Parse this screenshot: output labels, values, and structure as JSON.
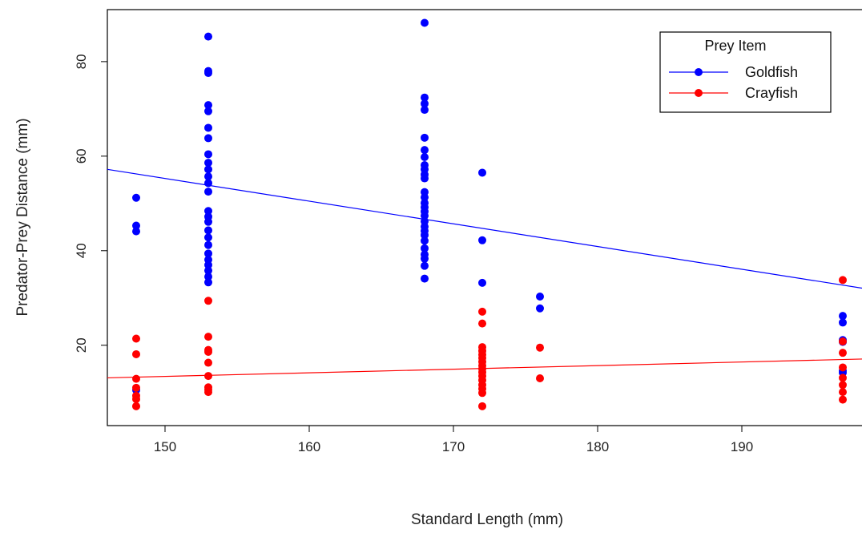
{
  "chart_data": {
    "type": "scatter",
    "title": "",
    "xlabel": "Standard Length (mm)",
    "ylabel": "Predator-Prey Distance (mm)",
    "xlim": [
      146,
      198.5
    ],
    "ylim": [
      3,
      91
    ],
    "xticks": [
      150,
      160,
      170,
      180,
      190
    ],
    "yticks": [
      20,
      40,
      60,
      80
    ],
    "grid": false,
    "legend": {
      "title": "Prey Item",
      "position": "top-right",
      "entries": [
        "Goldfish",
        "Crayfish"
      ]
    },
    "series": [
      {
        "name": "Goldfish",
        "color": "#0000ff",
        "points": [
          [
            148,
            51.2
          ],
          [
            148,
            45.3
          ],
          [
            148,
            44.1
          ],
          [
            148,
            10.5
          ],
          [
            153,
            85.3
          ],
          [
            153,
            78
          ],
          [
            153,
            77.6
          ],
          [
            153,
            70.8
          ],
          [
            153,
            69.5
          ],
          [
            153,
            66
          ],
          [
            153,
            63.8
          ],
          [
            153,
            60.4
          ],
          [
            153,
            58.6
          ],
          [
            153,
            57.2
          ],
          [
            153,
            55.7
          ],
          [
            153,
            54.3
          ],
          [
            153,
            52.5
          ],
          [
            153,
            48.4
          ],
          [
            153,
            47.2
          ],
          [
            153,
            46.1
          ],
          [
            153,
            44.3
          ],
          [
            153,
            42.8
          ],
          [
            153,
            41.2
          ],
          [
            153,
            39.4
          ],
          [
            153,
            38.1
          ],
          [
            153,
            37
          ],
          [
            153,
            35.8
          ],
          [
            153,
            34.5
          ],
          [
            153,
            33.3
          ],
          [
            168,
            88.2
          ],
          [
            168,
            72.4
          ],
          [
            168,
            71.1
          ],
          [
            168,
            69.8
          ],
          [
            168,
            63.9
          ],
          [
            168,
            61.3
          ],
          [
            168,
            59.8
          ],
          [
            168,
            58.1
          ],
          [
            168,
            57.2
          ],
          [
            168,
            56.1
          ],
          [
            168,
            55.3
          ],
          [
            168,
            52.4
          ],
          [
            168,
            51.3
          ],
          [
            168,
            50.1
          ],
          [
            168,
            49.2
          ],
          [
            168,
            48.3
          ],
          [
            168,
            47.4
          ],
          [
            168,
            46.2
          ],
          [
            168,
            45.1
          ],
          [
            168,
            44.2
          ],
          [
            168,
            43.3
          ],
          [
            168,
            42.1
          ],
          [
            168,
            40.5
          ],
          [
            168,
            39.2
          ],
          [
            168,
            38.3
          ],
          [
            168,
            36.8
          ],
          [
            168,
            34.1
          ],
          [
            172,
            56.5
          ],
          [
            172,
            42.2
          ],
          [
            172,
            33.2
          ],
          [
            176,
            30.3
          ],
          [
            176,
            27.8
          ],
          [
            197,
            26.2
          ],
          [
            197,
            24.8
          ],
          [
            197,
            21.1
          ],
          [
            197,
            20.7
          ],
          [
            197,
            14.6
          ],
          [
            197,
            14.2
          ]
        ]
      },
      {
        "name": "Crayfish",
        "color": "#ff0000",
        "points": [
          [
            148,
            21.4
          ],
          [
            148,
            18.1
          ],
          [
            148,
            12.9
          ],
          [
            148,
            11
          ],
          [
            148,
            9.3
          ],
          [
            148,
            8.6
          ],
          [
            148,
            7.1
          ],
          [
            153,
            29.4
          ],
          [
            153,
            21.8
          ],
          [
            153,
            19
          ],
          [
            153,
            18.6
          ],
          [
            153,
            16.3
          ],
          [
            153,
            13.5
          ],
          [
            153,
            11.1
          ],
          [
            153,
            10.6
          ],
          [
            153,
            10.1
          ],
          [
            172,
            27.1
          ],
          [
            172,
            24.6
          ],
          [
            172,
            19.6
          ],
          [
            172,
            18.8
          ],
          [
            172,
            18
          ],
          [
            172,
            17.3
          ],
          [
            172,
            16.5
          ],
          [
            172,
            15.7
          ],
          [
            172,
            15
          ],
          [
            172,
            14.3
          ],
          [
            172,
            13.5
          ],
          [
            172,
            12.6
          ],
          [
            172,
            11.6
          ],
          [
            172,
            10.8
          ],
          [
            172,
            9.9
          ],
          [
            172,
            7.1
          ],
          [
            176,
            19.5
          ],
          [
            176,
            13
          ],
          [
            197,
            33.8
          ],
          [
            197,
            20.8
          ],
          [
            197,
            18.4
          ],
          [
            197,
            15.3
          ],
          [
            197,
            13.1
          ],
          [
            197,
            11.6
          ],
          [
            197,
            10.1
          ],
          [
            197,
            8.5
          ]
        ]
      }
    ],
    "fit_lines": [
      {
        "series": "Goldfish",
        "color": "#0000ff",
        "x": [
          146,
          198.5
        ],
        "y": [
          57.2,
          32.0
        ]
      },
      {
        "series": "Crayfish",
        "color": "#ff0000",
        "x": [
          146,
          198.5
        ],
        "y": [
          13.1,
          17.1
        ]
      }
    ]
  }
}
